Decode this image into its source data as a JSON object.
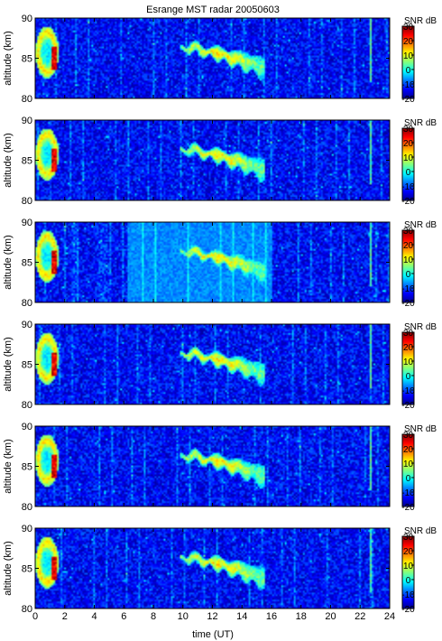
{
  "chart_data": {
    "type": "heatmap",
    "title": "Esrange MST radar 20050603",
    "xlabel": "time (UT)",
    "ylabel": "altitude (km)",
    "colorbar_label": "SNR dB",
    "xlim": [
      0,
      24
    ],
    "ylim": [
      80,
      90
    ],
    "clim": [
      -20,
      30
    ],
    "x_ticks": [
      0,
      2,
      4,
      6,
      8,
      10,
      12,
      14,
      16,
      18,
      20,
      22,
      24
    ],
    "x_tick_labels": [
      "0",
      "2",
      "4",
      "6",
      "8",
      "10",
      "12",
      "14",
      "16",
      "18",
      "20",
      "22",
      "24"
    ],
    "y_ticks": [
      80,
      85,
      90
    ],
    "y_tick_labels": [
      "80",
      "85",
      "90"
    ],
    "colorbar_ticks": [
      -20,
      -10,
      0,
      10,
      20,
      30
    ],
    "colorbar_tick_labels": [
      "-20",
      "-10",
      "0",
      "10",
      "20",
      "30"
    ],
    "colormap": [
      "#00008f",
      "#0000ff",
      "#0080ff",
      "#00ffff",
      "#80ff80",
      "#ffff00",
      "#ff8000",
      "#ff0000",
      "#800000"
    ],
    "panel_count": 6,
    "features": {
      "early_echo": {
        "time_start": 0.0,
        "time_end": 1.6,
        "alt_min": 82.5,
        "alt_max": 89.0,
        "peak_snr_db": 28
      },
      "main_echo": {
        "time_start": 9.8,
        "time_end": 15.5,
        "alt_top_start": 86.8,
        "alt_top_end": 85.0,
        "alt_bottom_start": 86.0,
        "alt_bottom_end": 82.6,
        "peak_snr_db": 12
      },
      "noise_floor_snr_db": -14,
      "elevated_background_panel3": {
        "time_start": 6.2,
        "time_end": 16.0,
        "snr_db": -7
      },
      "interference_line_time": 22.7
    }
  }
}
